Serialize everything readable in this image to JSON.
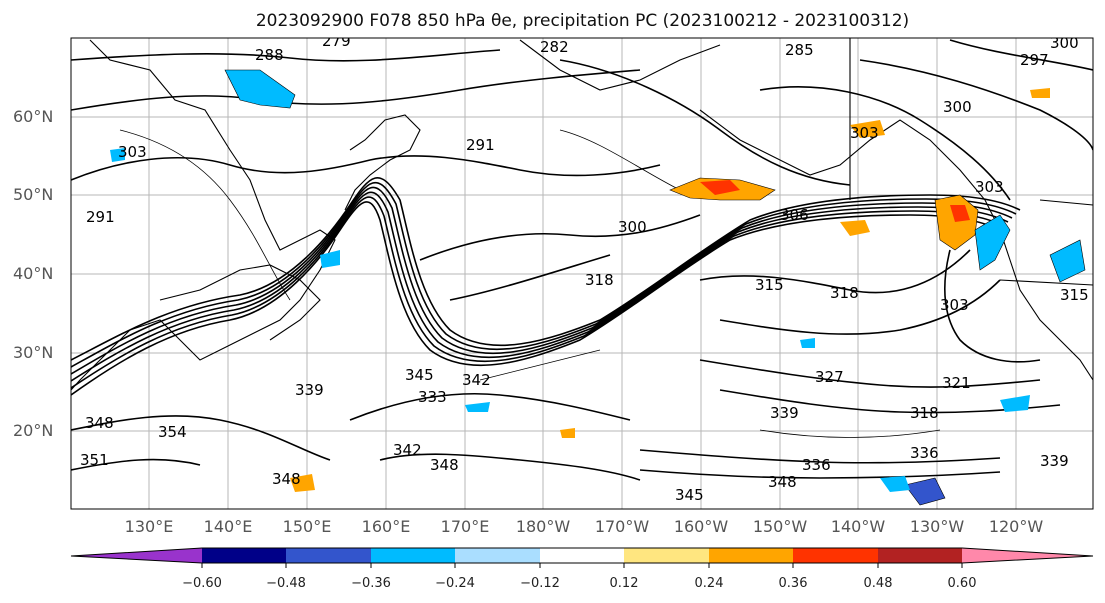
{
  "title": "2023092900 F078 850 hPa θe, precipitation PC (2023100212 - 2023100312)",
  "lat_labels": [
    "60°N",
    "50°N",
    "40°N",
    "30°N",
    "20°N"
  ],
  "lon_labels": [
    "130°E",
    "140°E",
    "150°E",
    "160°E",
    "170°E",
    "180°W",
    "170°W",
    "160°W",
    "150°W",
    "140°W",
    "130°W",
    "120°W"
  ],
  "contour_labels": [
    "288",
    "279",
    "282",
    "285",
    "297",
    "300",
    "303",
    "291",
    "291",
    "300",
    "306",
    "303",
    "300",
    "303",
    "318",
    "315",
    "318",
    "303",
    "315",
    "327",
    "321",
    "345",
    "342",
    "339",
    "333",
    "354",
    "348",
    "351",
    "348",
    "342",
    "348",
    "345",
    "348",
    "336",
    "339",
    "336",
    "339",
    "318"
  ],
  "colorbar": {
    "ticks": [
      "−0.60",
      "−0.48",
      "−0.36",
      "−0.24",
      "−0.12",
      "0.12",
      "0.24",
      "0.36",
      "0.48",
      "0.60"
    ],
    "colors": [
      "#9933cc",
      "#000088",
      "#3355cc",
      "#00bbff",
      "#aadeff",
      "#ffffff",
      "#ffe680",
      "#ffa500",
      "#ff3300",
      "#b22222",
      "#ff88aa"
    ]
  }
}
